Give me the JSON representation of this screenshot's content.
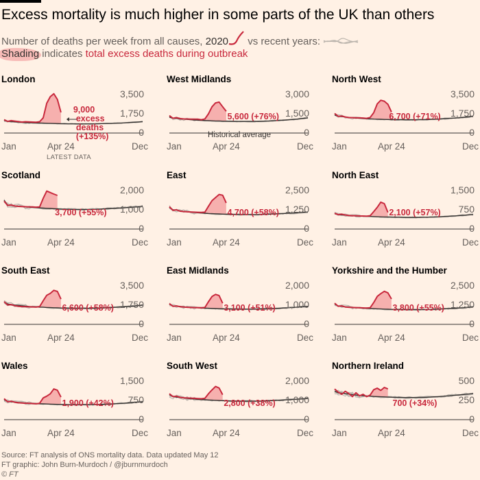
{
  "title": "Excess mortality is much higher in some parts of the UK than others",
  "subtitle": {
    "part1": "Number of deaths per week from all causes,",
    "year": "2020",
    "part2": "vs recent years:"
  },
  "legend": {
    "shading": "Shading",
    "indicates": "indicates",
    "excess": "total excess deaths during outbreak"
  },
  "colors": {
    "background": "#fff1e5",
    "line2020": "#c8283c",
    "shading": "#f4a4a4",
    "recentYears": "#bdb6ae",
    "average": "#33302e"
  },
  "chart_data": [
    {
      "type": "line",
      "region": "London",
      "title": "London",
      "yticks": [
        "3,500",
        "1,750",
        "0"
      ],
      "ylim": [
        0,
        3500
      ],
      "xticks": [
        "Jan",
        "Apr 24",
        "Dec"
      ],
      "annotation_lines": [
        "9,000",
        "excess",
        "deaths",
        "(+135%)"
      ],
      "historical_label": "",
      "latest_label": "LATEST DATA",
      "series_2020": [
        1210,
        1060,
        1130,
        1090,
        1050,
        1000,
        1030,
        1010,
        1000,
        990,
        1030,
        1390,
        2720,
        3310,
        3580,
        3060,
        1880
      ],
      "series_average": [
        1150,
        1050,
        1060,
        1020,
        1000,
        980,
        950,
        940,
        930,
        920,
        905,
        900,
        890,
        880,
        870,
        860,
        850,
        845,
        840,
        840,
        835,
        830,
        830,
        830,
        830,
        835,
        840,
        850,
        860,
        870,
        880,
        890,
        900,
        910,
        930,
        950,
        970,
        990,
        1010,
        1040
      ]
    },
    {
      "type": "line",
      "region": "West Midlands",
      "title": "West Midlands",
      "yticks": [
        "3,000",
        "1,500",
        "0"
      ],
      "ylim": [
        0,
        3000
      ],
      "xticks": [
        "Jan",
        "Apr 24",
        "Dec"
      ],
      "annotation_lines": [
        "5,600 (+76%)"
      ],
      "historical_label": "Historical average",
      "latest_label": "",
      "series_2020": [
        1360,
        1150,
        1200,
        1130,
        1100,
        1100,
        1080,
        1090,
        1080,
        1040,
        1100,
        1500,
        2050,
        2350,
        2420,
        2050,
        1700
      ],
      "series_average": [
        1250,
        1150,
        1150,
        1100,
        1080,
        1060,
        1040,
        1020,
        1005,
        990,
        975,
        965,
        955,
        945,
        935,
        925,
        920,
        915,
        910,
        905,
        905,
        905,
        905,
        905,
        905,
        910,
        920,
        930,
        940,
        955,
        970,
        985,
        1000,
        1020,
        1040,
        1060,
        1090,
        1120,
        1150,
        1190
      ]
    },
    {
      "type": "line",
      "region": "North West",
      "title": "North West",
      "yticks": [
        "3,500",
        "1,750",
        "0"
      ],
      "ylim": [
        0,
        3500
      ],
      "xticks": [
        "Jan",
        "Apr 24",
        "Dec"
      ],
      "annotation_lines": [
        "6,700 (+71%)"
      ],
      "historical_label": "",
      "latest_label": "",
      "series_2020": [
        1790,
        1520,
        1550,
        1460,
        1410,
        1400,
        1380,
        1380,
        1370,
        1340,
        1420,
        1850,
        2660,
        2990,
        2900,
        2620,
        1920
      ],
      "series_average": [
        1650,
        1520,
        1500,
        1460,
        1420,
        1390,
        1360,
        1340,
        1320,
        1300,
        1285,
        1270,
        1260,
        1250,
        1240,
        1230,
        1220,
        1215,
        1210,
        1210,
        1205,
        1205,
        1205,
        1205,
        1210,
        1215,
        1225,
        1240,
        1255,
        1270,
        1290,
        1310,
        1330,
        1350,
        1370,
        1390,
        1420,
        1450,
        1480,
        1520
      ]
    },
    {
      "type": "line",
      "region": "Scotland",
      "title": "Scotland",
      "yticks": [
        "2,000",
        "1,000",
        "0"
      ],
      "ylim": [
        0,
        2000
      ],
      "xticks": [
        "Jan",
        "Apr 24",
        "Dec"
      ],
      "annotation_lines": [
        "3,700 (+55%)"
      ],
      "historical_label": "",
      "latest_label": "",
      "series_2020": [
        1450,
        1230,
        1250,
        1200,
        1180,
        1170,
        1160,
        1150,
        1150,
        1140,
        1150,
        1600,
        1980,
        1900,
        1820,
        1750
      ],
      "series_average": [
        1500,
        1250,
        1240,
        1210,
        1190,
        1170,
        1150,
        1135,
        1120,
        1110,
        1100,
        1090,
        1080,
        1070,
        1060,
        1050,
        1040,
        1035,
        1030,
        1025,
        1020,
        1020,
        1020,
        1020,
        1020,
        1025,
        1030,
        1040,
        1050,
        1060,
        1070,
        1080,
        1090,
        1100,
        1110,
        1120,
        1135,
        1150,
        1160,
        1200
      ]
    },
    {
      "type": "line",
      "region": "East",
      "title": "East",
      "yticks": [
        "2,500",
        "1,250",
        "0"
      ],
      "ylim": [
        0,
        2500
      ],
      "xticks": [
        "Jan",
        "Apr 24",
        "Dec"
      ],
      "annotation_lines": [
        "4,700 (+58%)"
      ],
      "historical_label": "",
      "latest_label": "",
      "series_2020": [
        1450,
        1220,
        1250,
        1160,
        1140,
        1120,
        1110,
        1100,
        1090,
        1080,
        1100,
        1480,
        1850,
        2050,
        2250,
        2200,
        1700
      ],
      "series_average": [
        1400,
        1250,
        1230,
        1180,
        1150,
        1120,
        1100,
        1080,
        1060,
        1040,
        1025,
        1010,
        1000,
        990,
        980,
        970,
        960,
        955,
        950,
        945,
        940,
        940,
        940,
        940,
        940,
        945,
        950,
        960,
        970,
        980,
        990,
        1000,
        1010,
        1020,
        1030,
        1040,
        1060,
        1080,
        1090,
        1100
      ]
    },
    {
      "type": "line",
      "region": "North East",
      "title": "North East",
      "yticks": [
        "1,500",
        "750",
        "0"
      ],
      "ylim": [
        0,
        1500
      ],
      "xticks": [
        "Jan",
        "Apr 24",
        "Dec"
      ],
      "annotation_lines": [
        "2,100 (+57%)"
      ],
      "historical_label": "",
      "latest_label": "",
      "series_2020": [
        620,
        560,
        580,
        550,
        530,
        520,
        520,
        510,
        510,
        500,
        520,
        680,
        850,
        1050,
        990,
        650
      ],
      "series_average": [
        600,
        560,
        550,
        540,
        530,
        520,
        510,
        505,
        500,
        495,
        490,
        485,
        480,
        475,
        470,
        468,
        465,
        462,
        460,
        458,
        456,
        455,
        455,
        455,
        456,
        458,
        460,
        465,
        470,
        476,
        482,
        490,
        498,
        506,
        515,
        525,
        535,
        545,
        555,
        565
      ]
    },
    {
      "type": "line",
      "region": "South East",
      "title": "South East",
      "yticks": [
        "3,500",
        "1,750",
        "0"
      ],
      "ylim": [
        0,
        3500
      ],
      "xticks": [
        "Jan",
        "Apr 24",
        "Dec"
      ],
      "annotation_lines": [
        "6,600 (+58%)"
      ],
      "historical_label": "",
      "latest_label": "",
      "series_2020": [
        2060,
        1760,
        1800,
        1700,
        1650,
        1620,
        1610,
        1600,
        1590,
        1570,
        1620,
        2150,
        2650,
        2820,
        3100,
        3000,
        2300
      ],
      "series_average": [
        2050,
        1850,
        1820,
        1760,
        1720,
        1690,
        1660,
        1630,
        1610,
        1590,
        1570,
        1555,
        1540,
        1525,
        1510,
        1500,
        1490,
        1480,
        1475,
        1470,
        1465,
        1462,
        1460,
        1460,
        1462,
        1468,
        1475,
        1485,
        1500,
        1515,
        1530,
        1550,
        1570,
        1590,
        1610,
        1630,
        1660,
        1690,
        1720,
        1760
      ]
    },
    {
      "type": "line",
      "region": "East Midlands",
      "title": "East Midlands",
      "yticks": [
        "2,000",
        "1,000",
        "0"
      ],
      "ylim": [
        0,
        2000
      ],
      "xticks": [
        "Jan",
        "Apr 24",
        "Dec"
      ],
      "annotation_lines": [
        "3,100 (+51%)"
      ],
      "historical_label": "",
      "latest_label": "",
      "series_2020": [
        1080,
        940,
        960,
        920,
        900,
        890,
        880,
        870,
        870,
        860,
        880,
        1180,
        1450,
        1560,
        1500,
        1100
      ],
      "series_average": [
        1050,
        960,
        950,
        930,
        910,
        895,
        880,
        870,
        860,
        850,
        842,
        835,
        828,
        822,
        816,
        810,
        805,
        800,
        798,
        795,
        793,
        792,
        792,
        792,
        794,
        797,
        802,
        808,
        815,
        822,
        830,
        840,
        850,
        860,
        870,
        880,
        895,
        910,
        925,
        940
      ]
    },
    {
      "type": "line",
      "region": "Yorkshire and the Humber",
      "title": "Yorkshire and the Humber",
      "yticks": [
        "2,500",
        "1,250",
        "0"
      ],
      "ylim": [
        0,
        2500
      ],
      "xticks": [
        "Jan",
        "Apr 24",
        "Dec"
      ],
      "annotation_lines": [
        "3,800 (+55%)"
      ],
      "historical_label": "",
      "latest_label": "",
      "series_2020": [
        1380,
        1180,
        1200,
        1130,
        1110,
        1100,
        1090,
        1080,
        1070,
        1060,
        1080,
        1420,
        1820,
        2000,
        2150,
        2050,
        1650
      ],
      "series_average": [
        1320,
        1190,
        1170,
        1140,
        1120,
        1100,
        1080,
        1065,
        1050,
        1040,
        1030,
        1020,
        1010,
        1000,
        990,
        982,
        975,
        970,
        966,
        962,
        960,
        958,
        958,
        958,
        960,
        963,
        968,
        975,
        983,
        992,
        1002,
        1012,
        1022,
        1035,
        1048,
        1062,
        1078,
        1095,
        1112,
        1130
      ]
    },
    {
      "type": "line",
      "region": "Wales",
      "title": "Wales",
      "yticks": [
        "1,500",
        "750",
        "0"
      ],
      "ylim": [
        0,
        1500
      ],
      "xticks": [
        "Jan",
        "Apr 24",
        "Dec"
      ],
      "annotation_lines": [
        "1,900 (+42%)"
      ],
      "historical_label": "",
      "latest_label": "",
      "series_2020": [
        820,
        700,
        720,
        680,
        660,
        650,
        640,
        640,
        630,
        620,
        640,
        850,
        920,
        1010,
        1200,
        1150,
        880
      ],
      "series_average": [
        780,
        710,
        700,
        685,
        670,
        660,
        650,
        642,
        635,
        628,
        622,
        616,
        610,
        605,
        600,
        596,
        592,
        589,
        587,
        585,
        584,
        583,
        583,
        583,
        584,
        586,
        589,
        593,
        598,
        604,
        611,
        619,
        627,
        636,
        645,
        655,
        665,
        676,
        688,
        700
      ]
    },
    {
      "type": "line",
      "region": "South West",
      "title": "South West",
      "yticks": [
        "2,000",
        "1,000",
        "0"
      ],
      "ylim": [
        0,
        2000
      ],
      "xticks": [
        "Jan",
        "Apr 24",
        "Dec"
      ],
      "annotation_lines": [
        "2,800 (+38%)"
      ],
      "historical_label": "",
      "latest_label": "",
      "series_2020": [
        1350,
        1200,
        1220,
        1160,
        1140,
        1130,
        1120,
        1110,
        1100,
        1090,
        1110,
        1350,
        1550,
        1730,
        1650,
        1300
      ],
      "series_average": [
        1300,
        1200,
        1180,
        1150,
        1130,
        1110,
        1090,
        1075,
        1060,
        1048,
        1036,
        1025,
        1015,
        1005,
        995,
        988,
        982,
        976,
        972,
        968,
        965,
        964,
        963,
        963,
        965,
        968,
        972,
        978,
        985,
        993,
        1002,
        1012,
        1022,
        1033,
        1044,
        1056,
        1068,
        1080,
        1092,
        1105
      ]
    },
    {
      "type": "line",
      "region": "Northern Ireland",
      "title": "Northern Ireland",
      "yticks": [
        "500",
        "250",
        "0"
      ],
      "ylim": [
        0,
        500
      ],
      "xticks": [
        "Jan",
        "Apr 24",
        "Dec"
      ],
      "annotation_lines": [
        "700 (+34%)"
      ],
      "historical_label": "",
      "latest_label": "",
      "series_2020": [
        400,
        360,
        330,
        370,
        340,
        300,
        350,
        310,
        330,
        300,
        320,
        390,
        410,
        380,
        420,
        400
      ],
      "series_average": [
        370,
        350,
        345,
        338,
        332,
        326,
        320,
        316,
        312,
        308,
        305,
        302,
        300,
        298,
        296,
        294,
        292,
        291,
        290,
        289,
        288,
        288,
        288,
        288,
        289,
        290,
        292,
        294,
        297,
        300,
        303,
        306,
        310,
        314,
        318,
        322,
        326,
        331,
        336,
        341
      ]
    }
  ],
  "footer": {
    "source": "Source: FT analysis of ONS mortality data. Data updated May 12",
    "credit": "FT graphic: John Burn-Murdoch / @jburnmurdoch",
    "copyright": "© FT"
  }
}
